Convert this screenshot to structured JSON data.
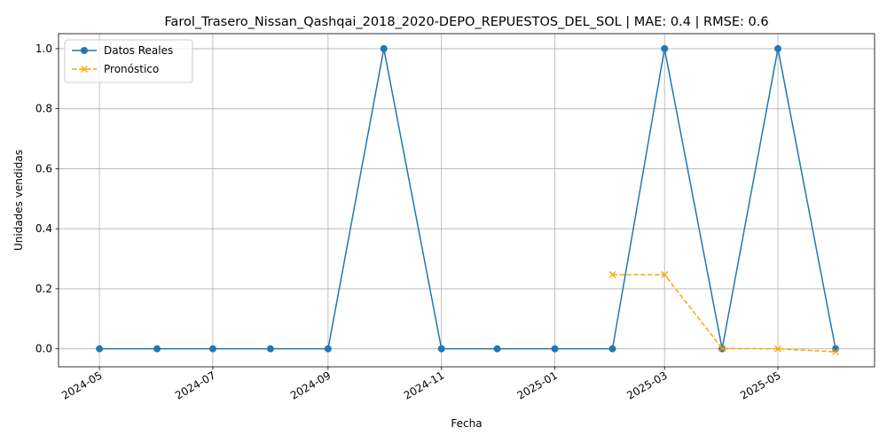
{
  "chart_data": {
    "type": "line",
    "title": "Farol_Trasero_Nissan_Qashqai_2018_2020-DEPO_REPUESTOS_DEL_SOL | MAE: 0.4 | RMSE: 0.6",
    "xlabel": "Fecha",
    "ylabel": "Unidades vendidas",
    "x_type": "date",
    "xlim": [
      "2024-04-09",
      "2025-06-22"
    ],
    "ylim": [
      -0.06,
      1.05
    ],
    "x_ticks": [
      "2024-05-01",
      "2024-07-01",
      "2024-09-01",
      "2024-11-01",
      "2025-01-01",
      "2025-03-01",
      "2025-05-01"
    ],
    "x_tick_labels": [
      "2024-05",
      "2024-07",
      "2024-09",
      "2024-11",
      "2025-01",
      "2025-03",
      "2025-05"
    ],
    "y_ticks": [
      0.0,
      0.2,
      0.4,
      0.6,
      0.8,
      1.0
    ],
    "y_tick_labels": [
      "0.0",
      "0.2",
      "0.4",
      "0.6",
      "0.8",
      "1.0"
    ],
    "grid": true,
    "legend_position": "top-left",
    "series": [
      {
        "name": "Datos Reales",
        "color": "#1f77b4",
        "marker": "circle",
        "line_style": "solid",
        "x": [
          "2024-05-01",
          "2024-06-01",
          "2024-07-01",
          "2024-08-01",
          "2024-09-01",
          "2024-10-01",
          "2024-11-01",
          "2024-12-01",
          "2025-01-01",
          "2025-02-01",
          "2025-03-01",
          "2025-04-01",
          "2025-05-01",
          "2025-06-01"
        ],
        "y": [
          0,
          0,
          0,
          0,
          0,
          1,
          0,
          0,
          0,
          0,
          1,
          0,
          1,
          0
        ]
      },
      {
        "name": "Pronóstico",
        "color": "#ffa500",
        "marker": "x",
        "line_style": "dashed",
        "x": [
          "2025-02-01",
          "2025-03-01",
          "2025-04-01",
          "2025-05-01",
          "2025-06-01"
        ],
        "y": [
          0.247,
          0.247,
          0.001,
          0.0,
          -0.01
        ]
      }
    ]
  }
}
